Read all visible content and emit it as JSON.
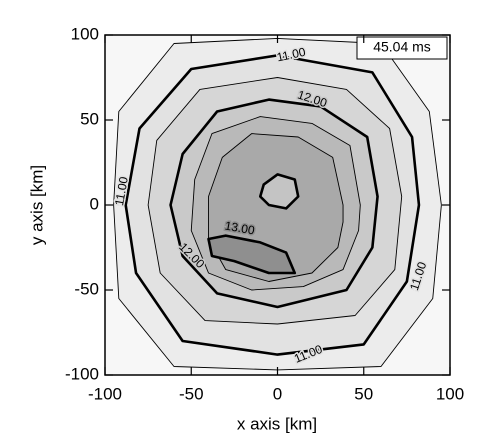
{
  "chart_data": {
    "type": "contour",
    "annotation": "45.04 ms",
    "xlabel": "x axis [km]",
    "ylabel": "y axis [km]",
    "xlim": [
      -100,
      100
    ],
    "ylim": [
      -100,
      100
    ],
    "xticks": [
      -100,
      -50,
      0,
      50,
      100
    ],
    "yticks": [
      -100,
      -50,
      0,
      50,
      100
    ],
    "background": "#f7f7f7",
    "contours": [
      {
        "level": 10.5,
        "color": "#ececec",
        "thick": false,
        "x": [
          95,
          88,
          60,
          0,
          -60,
          -92,
          -95,
          -92,
          -60,
          0,
          60,
          90
        ],
        "y": [
          0,
          55,
          95,
          98,
          95,
          55,
          0,
          -55,
          -95,
          -97,
          -95,
          -55
        ]
      },
      {
        "level": 11,
        "label": "11.00",
        "color": "#e2e2e2",
        "thick": true,
        "x": [
          82,
          78,
          55,
          0,
          -50,
          -80,
          -88,
          -82,
          -55,
          0,
          50,
          75
        ],
        "y": [
          0,
          40,
          78,
          88,
          80,
          45,
          0,
          -40,
          -80,
          -88,
          -82,
          -45
        ]
      },
      {
        "level": 11.5,
        "color": "#d6d6d6",
        "thick": false,
        "x": [
          72,
          65,
          40,
          0,
          -45,
          -70,
          -75,
          -68,
          -42,
          0,
          45,
          68
        ],
        "y": [
          5,
          45,
          68,
          75,
          68,
          38,
          0,
          -40,
          -68,
          -70,
          -65,
          -38
        ]
      },
      {
        "level": 12,
        "label": "12.00",
        "color": "#c9c9c9",
        "thick": true,
        "x": [
          58,
          52,
          25,
          -5,
          -35,
          -55,
          -62,
          -55,
          -35,
          0,
          40,
          55
        ],
        "y": [
          5,
          40,
          58,
          62,
          55,
          30,
          0,
          -30,
          -52,
          -60,
          -50,
          -25
        ]
      },
      {
        "level": 12.5,
        "color": "#b9b9b9",
        "thick": false,
        "x": [
          48,
          42,
          20,
          -10,
          -38,
          -48,
          -50,
          -40,
          -15,
          15,
          38,
          47
        ],
        "y": [
          0,
          35,
          48,
          52,
          42,
          15,
          -15,
          -40,
          -50,
          -48,
          -38,
          -15
        ]
      },
      {
        "level": 12.75,
        "color": "#a9a9a9",
        "thick": false,
        "x": [
          38,
          32,
          12,
          -15,
          -32,
          -40,
          -40,
          -30,
          -5,
          20,
          35,
          38
        ],
        "y": [
          0,
          28,
          40,
          42,
          28,
          5,
          -20,
          -38,
          -45,
          -40,
          -25,
          -10
        ]
      },
      {
        "level": 13,
        "label": "13.00",
        "color": "#8f8f8f",
        "thick": true,
        "x": [
          -40,
          -30,
          -10,
          5,
          10,
          -5,
          -25,
          -38
        ],
        "y": [
          -20,
          -18,
          -22,
          -28,
          -40,
          -40,
          -33,
          -30
        ]
      },
      {
        "level": 13,
        "color": "#c4c4c4",
        "thick": true,
        "x": [
          -8,
          0,
          10,
          12,
          5,
          -5,
          -10
        ],
        "y": [
          12,
          18,
          15,
          5,
          -2,
          0,
          5
        ]
      }
    ]
  }
}
